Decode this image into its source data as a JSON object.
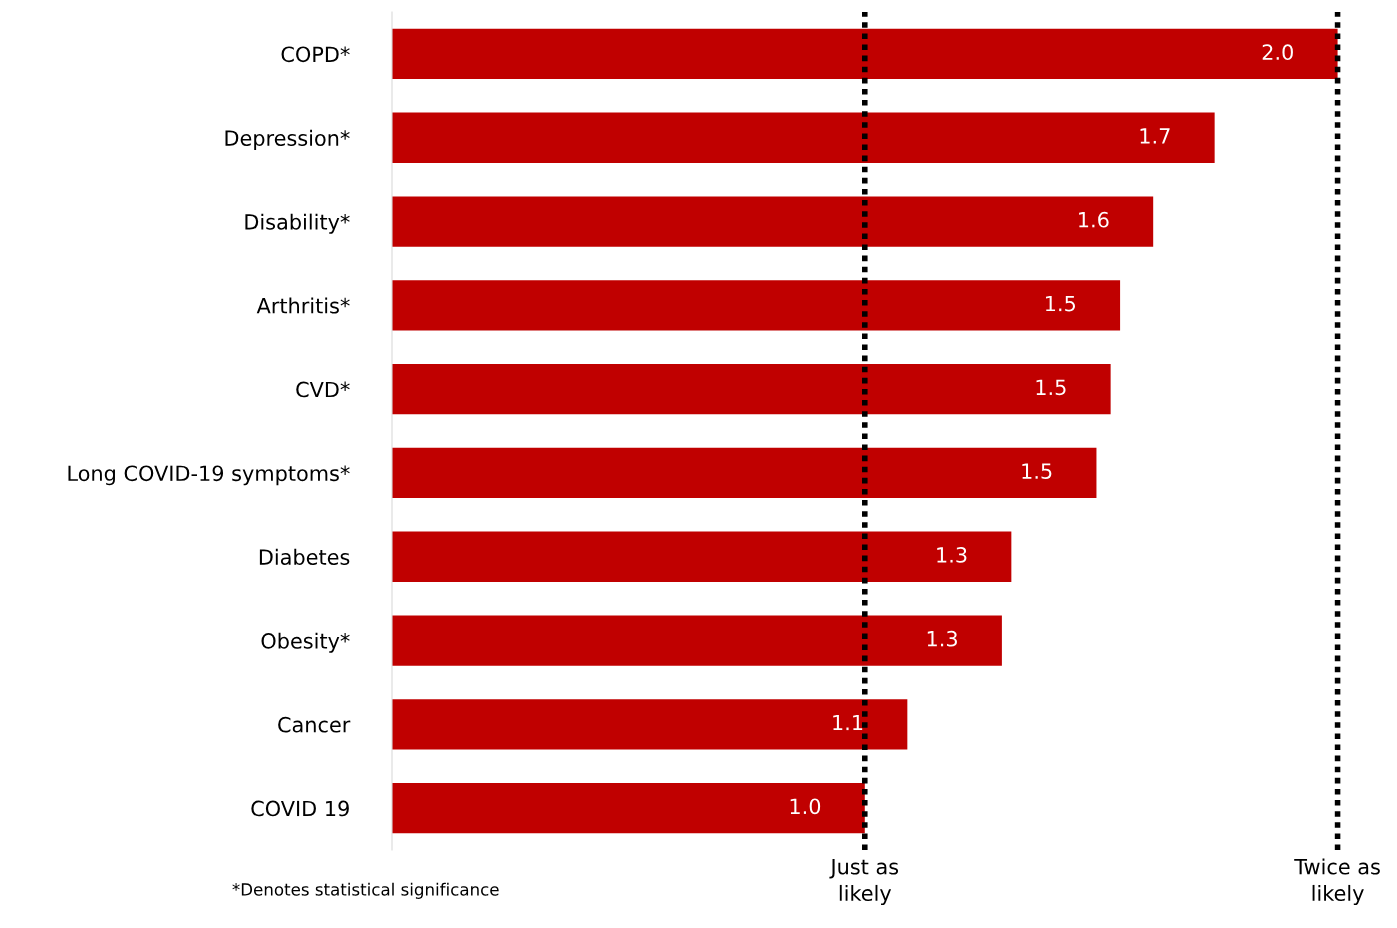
{
  "chart_data": {
    "type": "bar",
    "orientation": "horizontal",
    "categories": [
      "COPD*",
      "Depression*",
      "Disability*",
      "Arthritis*",
      "CVD*",
      "Long COVID-19 symptoms*",
      "Diabetes",
      "Obesity*",
      "Cancer",
      "COVID 19"
    ],
    "values": [
      2.0,
      1.74,
      1.61,
      1.54,
      1.52,
      1.49,
      1.31,
      1.29,
      1.09,
      1.0
    ],
    "value_labels": [
      "2.0",
      "1.7",
      "1.6",
      "1.5",
      "1.5",
      "1.5",
      "1.3",
      "1.3",
      "1.1",
      "1.0"
    ],
    "color": "#c00000",
    "tick_labels": "y",
    "grid": false,
    "legend": false,
    "ref_lines": [
      {
        "axis": "x",
        "value": 1.0,
        "label": "Just as\nlikely",
        "color": "#000000",
        "line_style": "dotted"
      },
      {
        "axis": "x",
        "value": 2.0,
        "label": "Twice as\nlikely",
        "color": "#000000",
        "line_style": "dotted"
      }
    ],
    "annotations": [
      "*Denotes statistical significance"
    ]
  }
}
